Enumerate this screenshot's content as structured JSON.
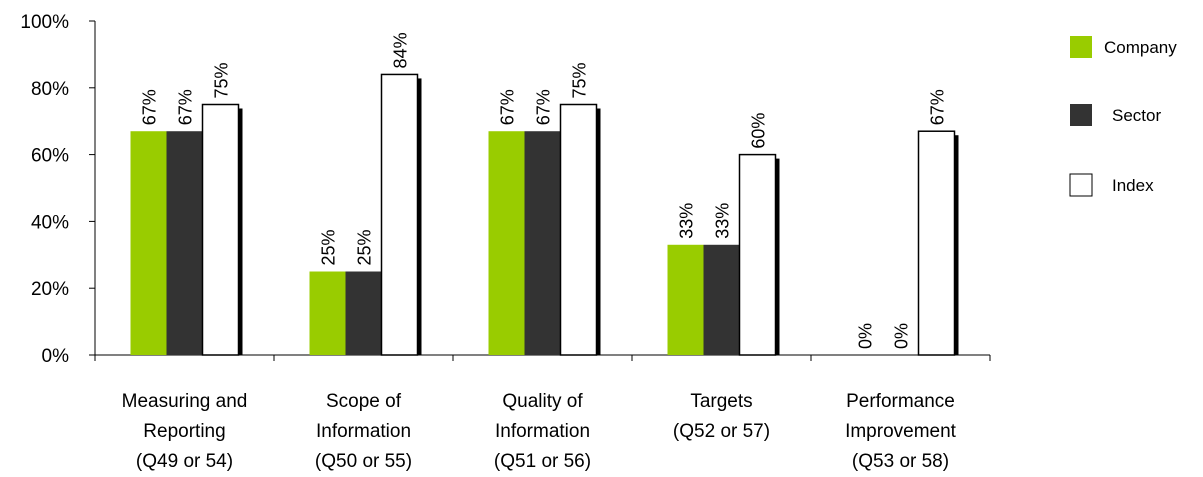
{
  "chart_data": {
    "type": "bar",
    "categories": [
      [
        "Measuring and",
        "Reporting",
        "(Q49 or 54)"
      ],
      [
        "Scope of",
        "Information",
        "(Q50 or 55)"
      ],
      [
        "Quality of",
        "Information",
        "(Q51 or 56)"
      ],
      [
        "Targets",
        "(Q52 or 57)"
      ],
      [
        "Performance",
        "Improvement",
        "(Q53 or 58)"
      ]
    ],
    "series": [
      {
        "name": "Company",
        "values": [
          67,
          25,
          67,
          33,
          0
        ],
        "labels": [
          "67%",
          "25%",
          "67%",
          "33%",
          "0%"
        ],
        "color": "#99cc00"
      },
      {
        "name": "Sector",
        "values": [
          67,
          25,
          67,
          33,
          0
        ],
        "labels": [
          "67%",
          "25%",
          "67%",
          "33%",
          "0%"
        ],
        "color": "#333333"
      },
      {
        "name": "Index",
        "values": [
          75,
          84,
          75,
          60,
          67
        ],
        "labels": [
          "75%",
          "84%",
          "75%",
          "60%",
          "67%"
        ],
        "color": "#ffffff"
      }
    ],
    "yticks": [
      "0%",
      "20%",
      "40%",
      "60%",
      "80%",
      "100%"
    ],
    "ylim": [
      0,
      100
    ],
    "grid": false,
    "legend": "right"
  }
}
